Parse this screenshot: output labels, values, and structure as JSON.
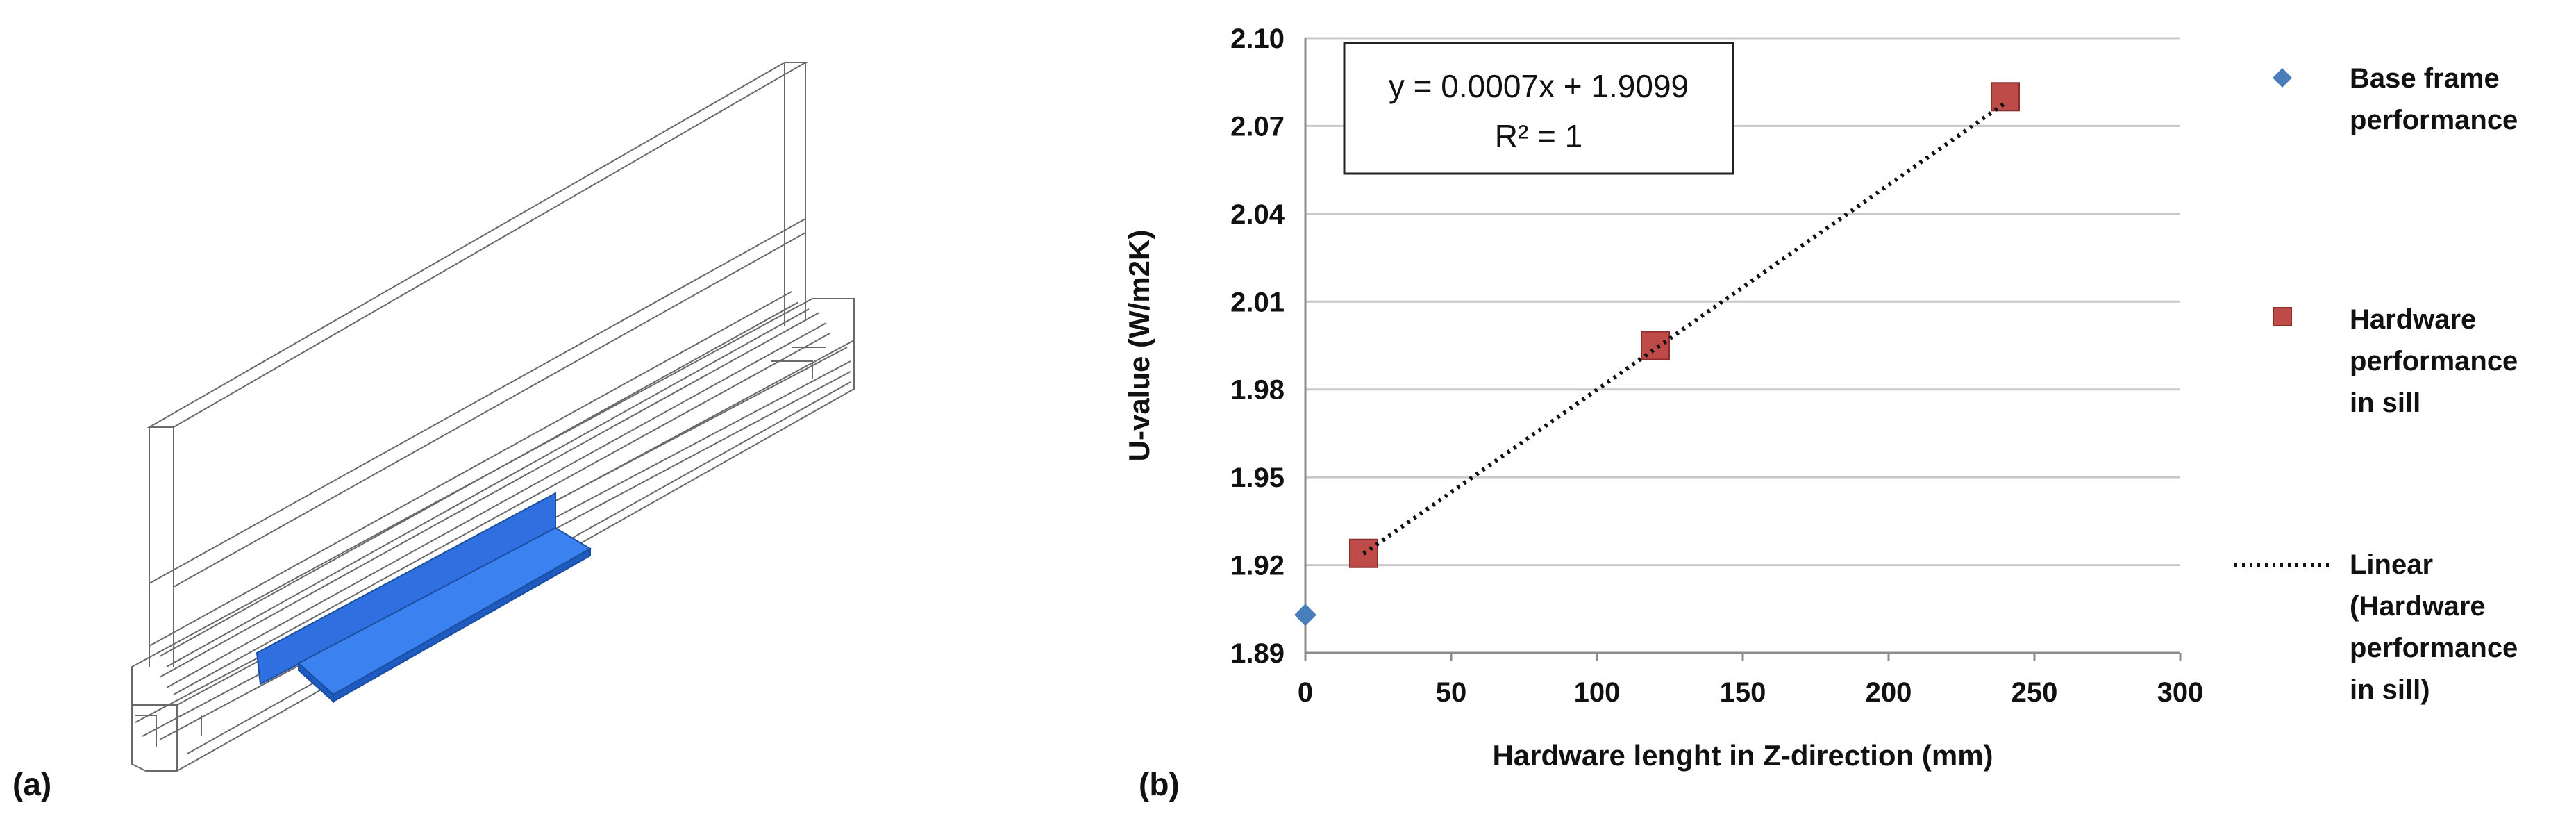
{
  "panel_a": {
    "label": "(a)"
  },
  "panel_b": {
    "label": "(b)"
  },
  "equation": {
    "line1": "y = 0.0007x + 1.9099",
    "line2": "R² = 1"
  },
  "legend": {
    "base": [
      "Base frame",
      "performance"
    ],
    "hardware": [
      "Hardware",
      "performance",
      "in sill"
    ],
    "linear": [
      "Linear",
      "(Hardware",
      "performance",
      "in sill)"
    ]
  },
  "colors": {
    "base": "#4a7ebb",
    "hardware": "#be4b48",
    "trend": "#111111",
    "grid": "#c8c8c8",
    "axis": "#8c8c8c"
  },
  "chart_data": {
    "type": "scatter",
    "xlabel": "Hardware lenght in Z-direction (mm)",
    "ylabel": "U-value (W/m2K)",
    "xlim": [
      0,
      300
    ],
    "ylim": [
      1.89,
      2.1
    ],
    "xticks": [
      "0",
      "50",
      "100",
      "150",
      "200",
      "250",
      "300"
    ],
    "yticks": [
      "1.89",
      "1.92",
      "1.95",
      "1.98",
      "2.01",
      "2.04",
      "2.07",
      "2.10"
    ],
    "grid": "horizontal",
    "legend_position": "right",
    "series": [
      {
        "name": "Base frame performance",
        "marker": "diamond",
        "points": [
          {
            "x": 0,
            "y": 1.903
          }
        ]
      },
      {
        "name": "Hardware performance in sill",
        "marker": "square",
        "points": [
          {
            "x": 20,
            "y": 1.924
          },
          {
            "x": 120,
            "y": 1.995
          },
          {
            "x": 240,
            "y": 2.08
          }
        ]
      },
      {
        "name": "Linear (Hardware performance in sill)",
        "type": "trendline",
        "slope": 0.0007,
        "intercept": 1.9099,
        "x_range": [
          20,
          240
        ]
      }
    ]
  }
}
